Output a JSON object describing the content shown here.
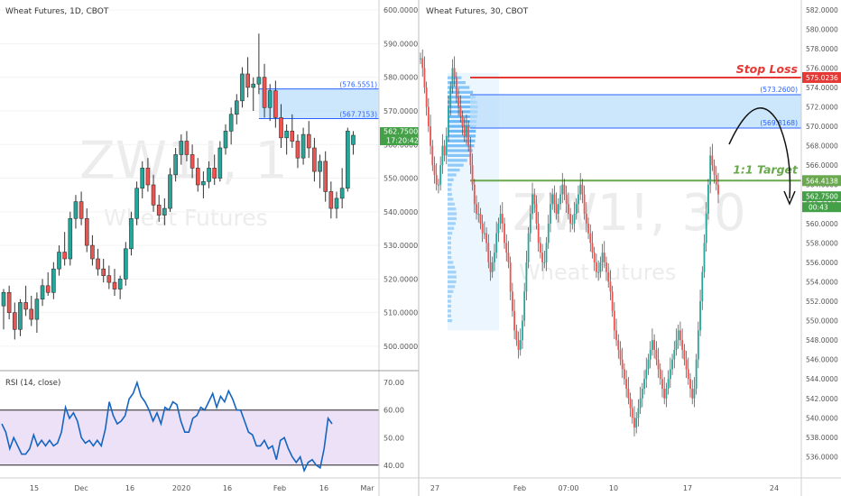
{
  "colors": {
    "up": "#26a69a",
    "down": "#ef5350",
    "zone_fill": "#bbdefb",
    "zone_line": "#2962ff",
    "stop": "#e53935",
    "target": "#6aa84f",
    "rsi": "#1565c0",
    "rsi_band": "#ede1f7",
    "volume_profile": "#64b5f6",
    "price_tag": "#43a047",
    "axis_text": "#555555",
    "watermark": "#ececec"
  },
  "chart_data": [
    {
      "type": "candlestick",
      "title": "Wheat Futures, 1D, CBOT",
      "watermark_symbol": "ZW1!, 1",
      "watermark_name": "Wheat Futures",
      "y_ticks": [
        "500.0000",
        "510.0000",
        "520.0000",
        "530.0000",
        "540.0000",
        "550.0000",
        "560.0000",
        "570.0000",
        "580.0000",
        "590.0000",
        "600.0000"
      ],
      "x_ticks": [
        "15",
        "Dec",
        "16",
        "2020",
        "16",
        "Feb",
        "16",
        "Mar"
      ],
      "ylim": [
        493,
        603
      ],
      "zone": {
        "upper": 576.5551,
        "lower": 567.7153,
        "upper_label": "(576.5551)",
        "lower_label": "(567.7153)"
      },
      "last_price": {
        "value": 562.75,
        "label": "562.7500",
        "timer": "17:20:42"
      },
      "candles": [
        {
          "o": 512,
          "h": 517,
          "l": 505,
          "c": 516
        },
        {
          "o": 516,
          "h": 518,
          "l": 508,
          "c": 510
        },
        {
          "o": 510,
          "h": 513,
          "l": 502,
          "c": 505
        },
        {
          "o": 505,
          "h": 514,
          "l": 503,
          "c": 513
        },
        {
          "o": 513,
          "h": 518,
          "l": 509,
          "c": 511
        },
        {
          "o": 511,
          "h": 515,
          "l": 506,
          "c": 508
        },
        {
          "o": 508,
          "h": 516,
          "l": 504,
          "c": 514
        },
        {
          "o": 514,
          "h": 520,
          "l": 512,
          "c": 518
        },
        {
          "o": 518,
          "h": 522,
          "l": 515,
          "c": 516
        },
        {
          "o": 516,
          "h": 525,
          "l": 514,
          "c": 523
        },
        {
          "o": 523,
          "h": 530,
          "l": 521,
          "c": 528
        },
        {
          "o": 528,
          "h": 534,
          "l": 524,
          "c": 526
        },
        {
          "o": 526,
          "h": 540,
          "l": 524,
          "c": 538
        },
        {
          "o": 538,
          "h": 545,
          "l": 535,
          "c": 543
        },
        {
          "o": 543,
          "h": 546,
          "l": 536,
          "c": 538
        },
        {
          "o": 538,
          "h": 541,
          "l": 528,
          "c": 530
        },
        {
          "o": 530,
          "h": 533,
          "l": 524,
          "c": 526
        },
        {
          "o": 526,
          "h": 529,
          "l": 521,
          "c": 523
        },
        {
          "o": 523,
          "h": 526,
          "l": 519,
          "c": 521
        },
        {
          "o": 521,
          "h": 524,
          "l": 517,
          "c": 519
        },
        {
          "o": 519,
          "h": 523,
          "l": 515,
          "c": 517
        },
        {
          "o": 517,
          "h": 521,
          "l": 514,
          "c": 520
        },
        {
          "o": 520,
          "h": 531,
          "l": 518,
          "c": 529
        },
        {
          "o": 529,
          "h": 540,
          "l": 527,
          "c": 538
        },
        {
          "o": 538,
          "h": 549,
          "l": 536,
          "c": 547
        },
        {
          "o": 547,
          "h": 555,
          "l": 544,
          "c": 553
        },
        {
          "o": 553,
          "h": 556,
          "l": 546,
          "c": 548
        },
        {
          "o": 548,
          "h": 551,
          "l": 540,
          "c": 542
        },
        {
          "o": 542,
          "h": 545,
          "l": 537,
          "c": 539
        },
        {
          "o": 539,
          "h": 544,
          "l": 536,
          "c": 541
        },
        {
          "o": 541,
          "h": 553,
          "l": 540,
          "c": 551
        },
        {
          "o": 551,
          "h": 559,
          "l": 549,
          "c": 557
        },
        {
          "o": 557,
          "h": 563,
          "l": 554,
          "c": 561
        },
        {
          "o": 561,
          "h": 564,
          "l": 555,
          "c": 557
        },
        {
          "o": 557,
          "h": 560,
          "l": 550,
          "c": 553
        },
        {
          "o": 553,
          "h": 556,
          "l": 546,
          "c": 548
        },
        {
          "o": 548,
          "h": 552,
          "l": 544,
          "c": 549
        },
        {
          "o": 549,
          "h": 555,
          "l": 547,
          "c": 553
        },
        {
          "o": 553,
          "h": 557,
          "l": 548,
          "c": 550
        },
        {
          "o": 550,
          "h": 561,
          "l": 549,
          "c": 559
        },
        {
          "o": 559,
          "h": 566,
          "l": 557,
          "c": 564
        },
        {
          "o": 564,
          "h": 571,
          "l": 560,
          "c": 569
        },
        {
          "o": 569,
          "h": 575,
          "l": 566,
          "c": 573
        },
        {
          "o": 573,
          "h": 583,
          "l": 571,
          "c": 581
        },
        {
          "o": 581,
          "h": 586,
          "l": 574,
          "c": 577
        },
        {
          "o": 577,
          "h": 580,
          "l": 570,
          "c": 578
        },
        {
          "o": 578,
          "h": 593,
          "l": 575,
          "c": 580
        },
        {
          "o": 580,
          "h": 584,
          "l": 568,
          "c": 571
        },
        {
          "o": 571,
          "h": 578,
          "l": 567,
          "c": 576
        },
        {
          "o": 576,
          "h": 579,
          "l": 565,
          "c": 568
        },
        {
          "o": 568,
          "h": 572,
          "l": 559,
          "c": 562
        },
        {
          "o": 562,
          "h": 566,
          "l": 557,
          "c": 564
        },
        {
          "o": 564,
          "h": 569,
          "l": 559,
          "c": 561
        },
        {
          "o": 561,
          "h": 563,
          "l": 553,
          "c": 556
        },
        {
          "o": 556,
          "h": 565,
          "l": 554,
          "c": 563
        },
        {
          "o": 563,
          "h": 567,
          "l": 556,
          "c": 559
        },
        {
          "o": 559,
          "h": 562,
          "l": 549,
          "c": 552
        },
        {
          "o": 552,
          "h": 557,
          "l": 547,
          "c": 555
        },
        {
          "o": 555,
          "h": 558,
          "l": 543,
          "c": 546
        },
        {
          "o": 546,
          "h": 549,
          "l": 538,
          "c": 541
        },
        {
          "o": 541,
          "h": 546,
          "l": 538,
          "c": 544
        },
        {
          "o": 544,
          "h": 553,
          "l": 541,
          "c": 547
        },
        {
          "o": 547,
          "h": 565,
          "l": 546,
          "c": 564
        },
        {
          "o": 560,
          "h": 564,
          "l": 557,
          "c": 562.75
        }
      ]
    },
    {
      "type": "line",
      "title": "RSI (14, close)",
      "y_ticks": [
        "40.00",
        "50.00",
        "60.00",
        "70.00"
      ],
      "ylim": [
        36,
        74
      ],
      "bands": [
        40,
        60
      ],
      "values": [
        55,
        52,
        46,
        50,
        47,
        44,
        44,
        46,
        51,
        47,
        49,
        47,
        49,
        47,
        48,
        52,
        61,
        57,
        59,
        56,
        50,
        48,
        49,
        47,
        49,
        47,
        53,
        63,
        58,
        55,
        56,
        58,
        64,
        66,
        70,
        65,
        63,
        60,
        56,
        59,
        55,
        61,
        60,
        63,
        62,
        56,
        52,
        52,
        57,
        58,
        61,
        60,
        63,
        66,
        61,
        65,
        63,
        67,
        64,
        60,
        60,
        56,
        52,
        51,
        47,
        47,
        49,
        46,
        47,
        42,
        49,
        50,
        46,
        43,
        41,
        43,
        38,
        41,
        42,
        40,
        39,
        46,
        57,
        55
      ]
    },
    {
      "type": "candlestick",
      "title": "Wheat Futures, 30, CBOT",
      "watermark_symbol": "ZW1!, 30",
      "watermark_name": "Wheat Futures",
      "y_ticks": [
        "536.0000",
        "538.0000",
        "540.0000",
        "542.0000",
        "544.0000",
        "546.0000",
        "548.0000",
        "550.0000",
        "552.0000",
        "554.0000",
        "556.0000",
        "558.0000",
        "560.0000",
        "562.0000",
        "564.0000",
        "566.0000",
        "568.0000",
        "570.0000",
        "572.0000",
        "574.0000",
        "576.0000",
        "578.0000",
        "580.0000",
        "582.0000"
      ],
      "x_ticks": [
        "27",
        "Feb",
        "07:00",
        "10",
        "17",
        "24"
      ],
      "ylim": [
        534,
        583
      ],
      "zone": {
        "upper": 573.26,
        "lower": 569.8168,
        "upper_label": "(573.2600)",
        "lower_label": "(569.8168)"
      },
      "stop_loss": {
        "value": 575.0236,
        "label": "575.0236",
        "text": "Stop Loss"
      },
      "target": {
        "value": 564.4138,
        "label": "564.4138",
        "text": "1:1 Target"
      },
      "last_price": {
        "value": 562.75,
        "label": "562.7500",
        "timer": "00:43"
      },
      "path": [
        577,
        576,
        574,
        572,
        570,
        568,
        566,
        565,
        564,
        564,
        566,
        568,
        567,
        569,
        572,
        574,
        576,
        575,
        573,
        572,
        571,
        570,
        569,
        570,
        568,
        566,
        564,
        562,
        561,
        561,
        560,
        559,
        559,
        558,
        556,
        555,
        556,
        557,
        559,
        560,
        561,
        560,
        558,
        557,
        556,
        553,
        551,
        549,
        548,
        547,
        548,
        550,
        553,
        556,
        559,
        561,
        563,
        562,
        560,
        558,
        557,
        556,
        556,
        558,
        560,
        562,
        563,
        562,
        561,
        562,
        563,
        564,
        563,
        562,
        561,
        560,
        560,
        561,
        562,
        563,
        564,
        563,
        561,
        560,
        559,
        558,
        557,
        556,
        555,
        555,
        556,
        557,
        556,
        555,
        554,
        553,
        551,
        549,
        548,
        547,
        546,
        545,
        544,
        543,
        542,
        541,
        540,
        539,
        540,
        541,
        542,
        543,
        544,
        545,
        546,
        547,
        548,
        547,
        546,
        545,
        544,
        543,
        542,
        543,
        544,
        545,
        546,
        547,
        548,
        549,
        548,
        547,
        546,
        545,
        544,
        543,
        542,
        543,
        546,
        549,
        552,
        555,
        558,
        561,
        564,
        567,
        566,
        565,
        564,
        563
      ]
    }
  ]
}
